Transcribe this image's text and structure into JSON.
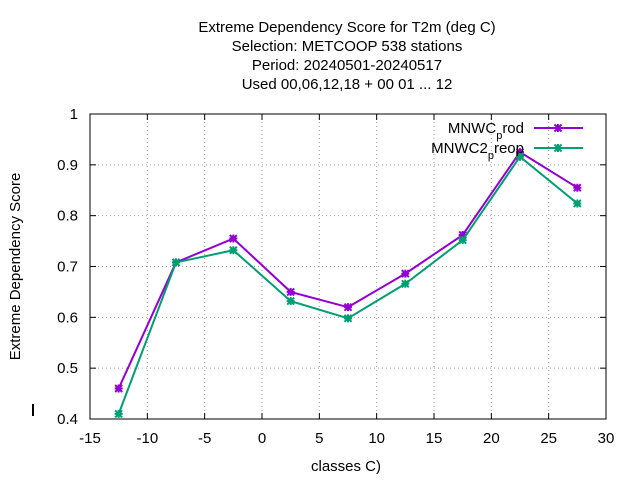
{
  "chart_data": {
    "type": "line",
    "title_lines": [
      "Extreme Dependency Score  for T2m (deg C)",
      "Selection: METCOOP    538 stations",
      "Period: 20240501-20240517",
      "Used  00,06,12,18 + 00 01 ... 12"
    ],
    "xlabel": "classes C)",
    "ylabel": "Extreme Dependency Score",
    "xlim": [
      -15,
      30
    ],
    "ylim": [
      0.4,
      1.0
    ],
    "xticks": [
      -15,
      -10,
      -5,
      0,
      5,
      10,
      15,
      20,
      25,
      30
    ],
    "xtick_labels": [
      "-15",
      "-10",
      "-5",
      "0",
      "5",
      "10",
      "15",
      "20",
      "25",
      "30"
    ],
    "yticks": [
      0.4,
      0.5,
      0.6,
      0.7,
      0.8,
      0.9,
      1.0
    ],
    "ytick_labels": [
      "0.4",
      "0.5",
      "0.6",
      "0.7",
      "0.8",
      "0.9",
      "1"
    ],
    "grid": true,
    "legend_position": "top-right",
    "x": [
      -12.5,
      -7.5,
      -2.5,
      2.5,
      7.5,
      12.5,
      17.5,
      22.5,
      27.5
    ],
    "series": [
      {
        "name_main": "MNWC",
        "name_sub": "p",
        "name_tail": "rod",
        "color": "#9400d3",
        "values": [
          0.46,
          0.708,
          0.755,
          0.65,
          0.62,
          0.686,
          0.762,
          0.925,
          0.855
        ]
      },
      {
        "name_main": "MNWC2",
        "name_sub": "p",
        "name_tail": "reop",
        "color": "#009e73",
        "values": [
          0.41,
          0.708,
          0.732,
          0.632,
          0.598,
          0.666,
          0.752,
          0.916,
          0.824
        ]
      }
    ]
  }
}
